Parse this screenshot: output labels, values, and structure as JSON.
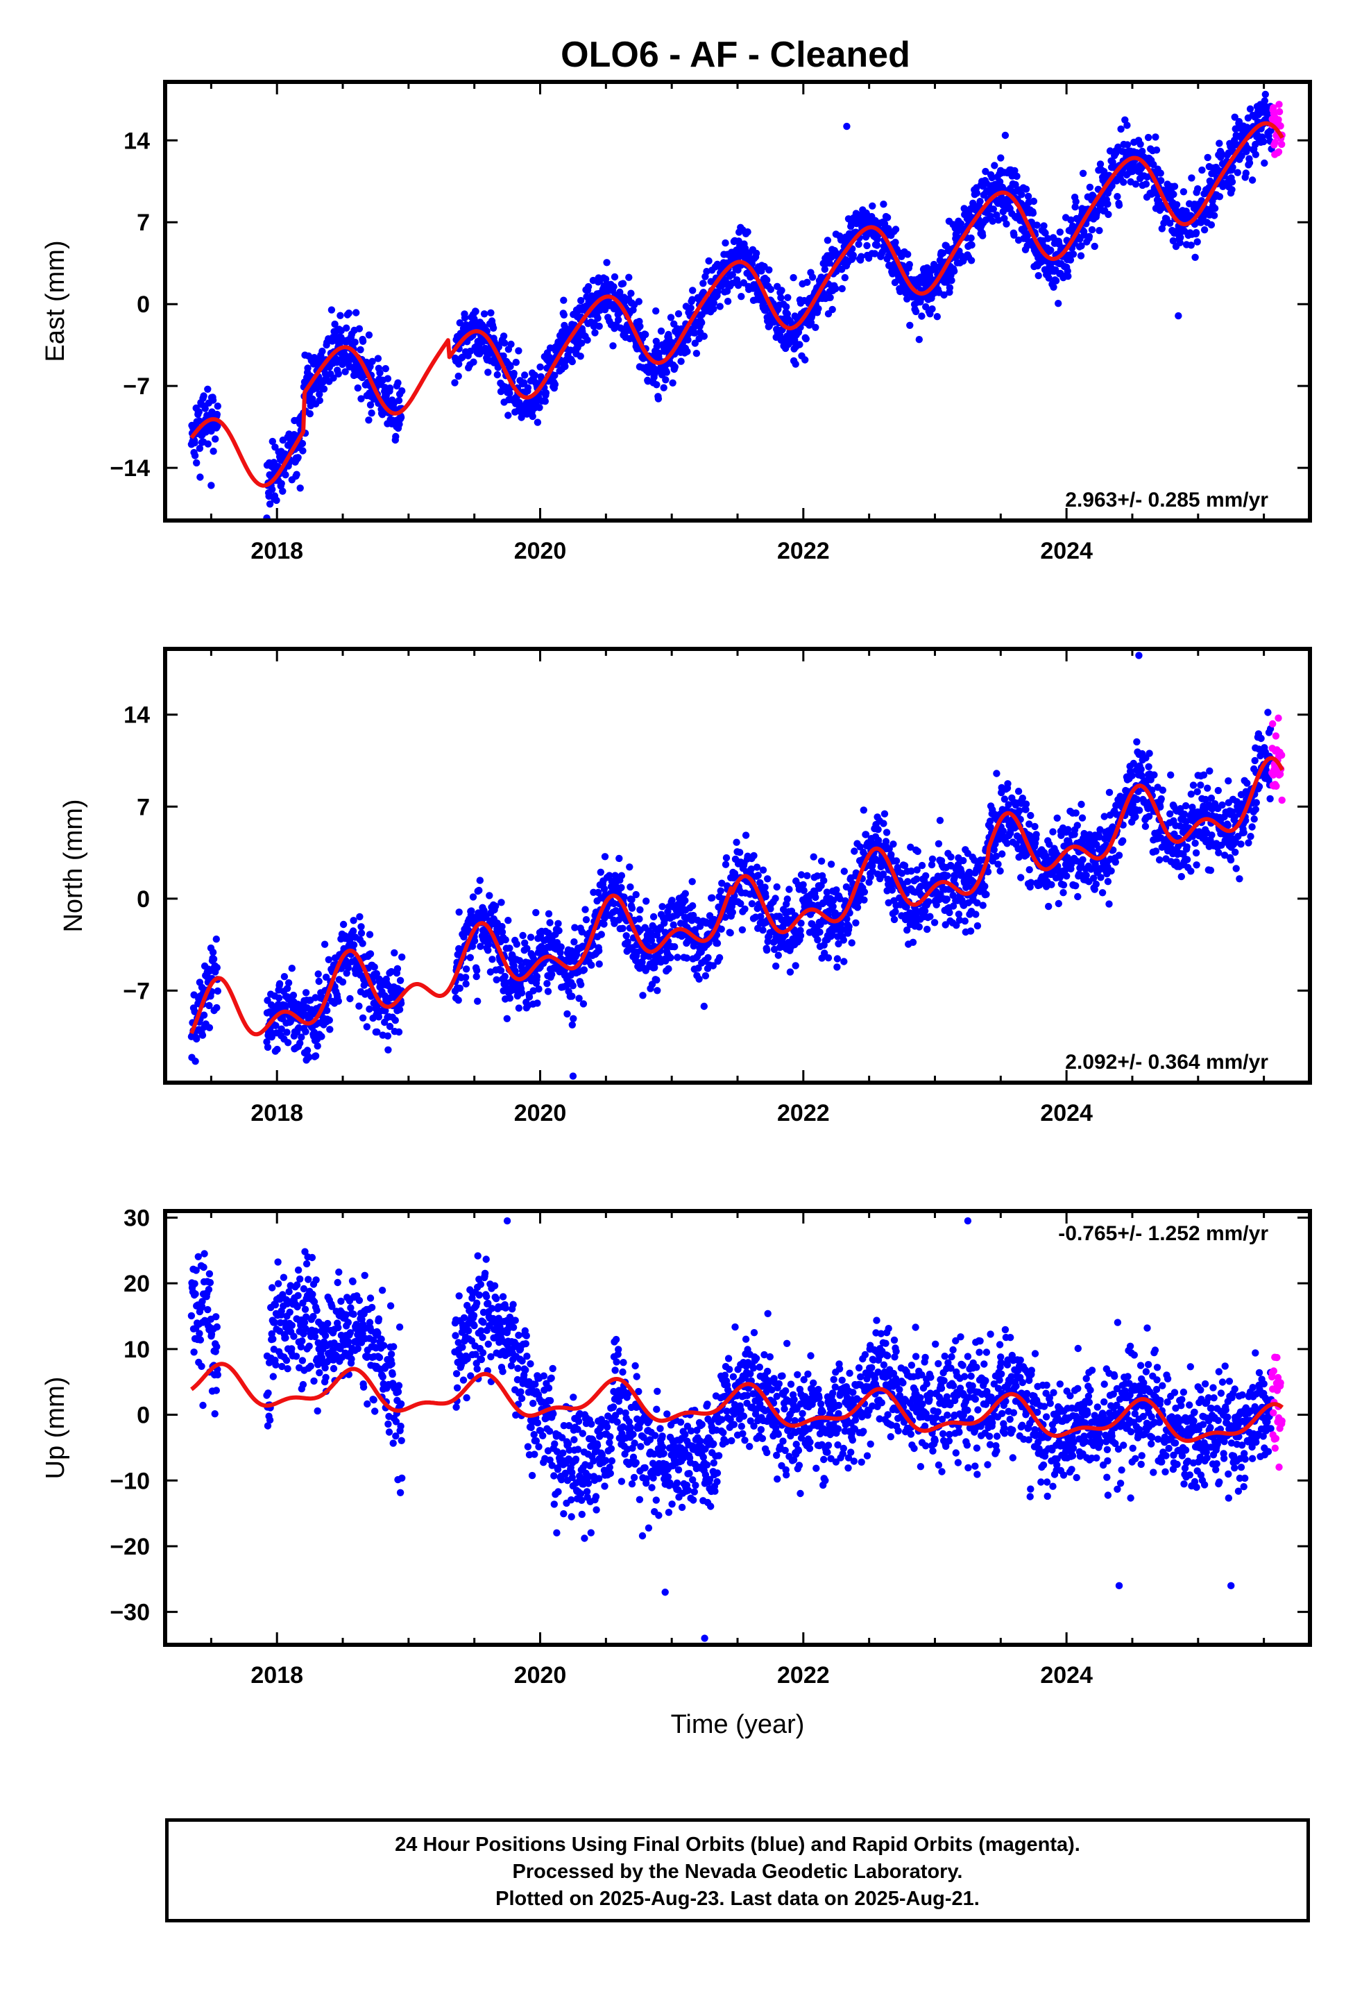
{
  "title": "OLO6  - AF - Cleaned",
  "colors": {
    "final_orbits": "#0000ff",
    "rapid_orbits": "#ff00ff",
    "model_fit": "#ee1111",
    "frame": "#000000"
  },
  "chart_data": [
    {
      "type": "scatter",
      "component": "east",
      "ylabel": "East (mm)",
      "rate_text": "2.963+/- 0.285 mm/yr",
      "rate_position": "bottom-right",
      "xlim": [
        2017.15,
        2025.85
      ],
      "ylim": [
        -18.5,
        19
      ],
      "x_ticks": [
        2018,
        2020,
        2022,
        2024
      ],
      "y_ticks": [
        -14,
        -7,
        0,
        7,
        14
      ],
      "data_range": [
        2017.35,
        2025.64
      ],
      "rapid_range": [
        2025.56,
        2025.64
      ],
      "model": {
        "offset": 0,
        "velocity": 2.963,
        "ref_year": 2021.4,
        "segments": [
          {
            "from": 2017.35,
            "to": 2018.2,
            "intercept": -1.6
          },
          {
            "from": 2018.2,
            "to": 2019.3,
            "intercept": 1.6
          },
          {
            "from": 2019.3,
            "to": 2025.64,
            "intercept": 0
          }
        ],
        "annual": {
          "amplitude": 3.3,
          "peak": 0.45
        },
        "semiannual": {
          "amplitude": 0.5,
          "peak": 0.1
        },
        "scatter_sd": 1.3
      },
      "outliers": [
        [
          2022.33,
          15.2
        ],
        [
          2017.5,
          -15.5
        ],
        [
          2024.85,
          -1.0
        ],
        [
          2023.5,
          12.5
        ]
      ]
    },
    {
      "type": "scatter",
      "component": "north",
      "ylabel": "North (mm)",
      "rate_text": "2.092+/- 0.364 mm/yr",
      "rate_position": "bottom-right",
      "xlim": [
        2017.15,
        2025.85
      ],
      "ylim": [
        -14,
        19
      ],
      "x_ticks": [
        2018,
        2020,
        2022,
        2024
      ],
      "y_ticks": [
        -7,
        0,
        7,
        14
      ],
      "data_range": [
        2017.35,
        2025.64
      ],
      "rapid_range": [
        2025.56,
        2025.64
      ],
      "model": {
        "offset": -1.2,
        "velocity": 2.092,
        "ref_year": 2021.4,
        "segments": [
          {
            "from": 2017.35,
            "to": 2021.45,
            "intercept": 0
          },
          {
            "from": 2021.45,
            "to": 2023.4,
            "intercept": -0.6
          },
          {
            "from": 2023.4,
            "to": 2025.64,
            "intercept": 0
          }
        ],
        "annual": {
          "amplitude": 1.8,
          "peak": 0.55
        },
        "semiannual": {
          "amplitude": 1.4,
          "peak": 0.05
        },
        "scatter_sd": 1.5
      },
      "outliers": [
        [
          2020.25,
          -13.5
        ],
        [
          2024.55,
          18.5
        ],
        [
          2017.35,
          -10.5
        ]
      ]
    },
    {
      "type": "scatter",
      "component": "up",
      "ylabel": "Up (mm)",
      "xlabel": "Time (year)",
      "rate_text": "-0.765+/- 1.252 mm/yr",
      "rate_position": "top-right",
      "xlim": [
        2017.15,
        2025.85
      ],
      "ylim": [
        -35,
        31
      ],
      "x_ticks": [
        2018,
        2020,
        2022,
        2024
      ],
      "y_ticks": [
        -30,
        -20,
        -10,
        0,
        10,
        20,
        30
      ],
      "data_range": [
        2017.35,
        2025.64
      ],
      "rapid_range": [
        2025.56,
        2025.64
      ],
      "model": {
        "offset": 1.2,
        "velocity": -0.765,
        "ref_year": 2021.4,
        "segments": [
          {
            "from": 2017.35,
            "to": 2025.64,
            "intercept": 0
          }
        ],
        "annual": {
          "amplitude": 2.5,
          "peak": 0.55
        },
        "semiannual": {
          "amplitude": 1.2,
          "peak": 0.1
        },
        "scatter_sd": 4.0,
        "blocks": [
          {
            "from": 2017.35,
            "to": 2017.5,
            "shift": 14
          },
          {
            "from": 2017.95,
            "to": 2018.3,
            "shift": 14
          },
          {
            "from": 2018.3,
            "to": 2018.9,
            "shift": 8
          },
          {
            "from": 2019.35,
            "to": 2019.9,
            "shift": 10
          },
          {
            "from": 2020.1,
            "to": 2020.55,
            "shift": -10
          },
          {
            "from": 2020.6,
            "to": 2021.35,
            "shift": -8
          },
          {
            "from": 2022.5,
            "to": 2023.4,
            "shift": 4
          }
        ]
      },
      "outliers": [
        [
          2021.25,
          -34
        ],
        [
          2019.75,
          29.5
        ],
        [
          2023.25,
          29.5
        ],
        [
          2020.95,
          -27
        ],
        [
          2024.4,
          -26
        ],
        [
          2025.25,
          -26
        ]
      ]
    }
  ],
  "footer": {
    "line1": "24 Hour Positions Using Final Orbits (blue) and Rapid Orbits (magenta).",
    "line2": "Processed by the Nevada Geodetic Laboratory.",
    "line3": "Plotted on 2025-Aug-23. Last data on 2025-Aug-21."
  }
}
